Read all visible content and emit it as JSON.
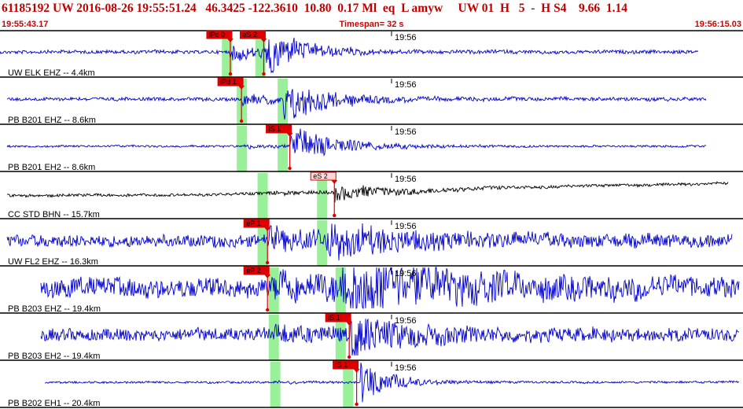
{
  "header": {
    "title": "61185192 UW 2016-08-26 19:55:51.24   46.3425 -122.3610  10.80  0.17 Ml  eq  L amyw     UW 01  H   5  -  H S4    9.66  1.14",
    "start_time": "19:55:43.17",
    "timespan": "Timespan=  32 s",
    "end_time": "19:56:15.03"
  },
  "colors": {
    "header_text": "#c00000",
    "trace_blue": "#0000cc",
    "trace_black": "#000000",
    "pick_box": "#dd0000",
    "pick_line": "#dd0000",
    "window_green": "#99f099",
    "divider": "#000000"
  },
  "traces": [
    {
      "label": "UW ELK EHZ -- 4.4km",
      "time_mark": "19:56",
      "color": "blue",
      "amp": 0.1,
      "start": 0.0,
      "end": 0.94,
      "windows": [
        0.305,
        0.35
      ],
      "picks": [
        {
          "label": "iPc 0",
          "t": 0.31,
          "filled": true
        },
        {
          "label": "eS 2",
          "t": 0.355,
          "filled": true
        }
      ],
      "onset_p": 0.31,
      "onset_s": 0.355,
      "p_amp": 0.7,
      "s_amp": 1.1,
      "decay": 0.05
    },
    {
      "label": "PB B201 EHZ -- 8.6km",
      "time_mark": "19:56",
      "color": "blue",
      "amp": 0.1,
      "start": 0.01,
      "end": 0.95,
      "windows": [
        0.325,
        0.38
      ],
      "picks": [
        {
          "label": "iPd 1",
          "t": 0.325,
          "filled": true
        }
      ],
      "onset_p": 0.325,
      "onset_s": 0.38,
      "p_amp": 0.5,
      "s_amp": 1.1,
      "decay": 0.06
    },
    {
      "label": "PB B201 EH2 -- 8.6km",
      "time_mark": "19:56",
      "color": "blue",
      "amp": 0.06,
      "start": 0.01,
      "end": 0.95,
      "windows": [
        0.325,
        0.38
      ],
      "picks": [
        {
          "label": "iS 1",
          "t": 0.39,
          "filled": true
        }
      ],
      "onset_p": 0.325,
      "onset_s": 0.39,
      "p_amp": 0.15,
      "s_amp": 1.1,
      "decay": 0.06
    },
    {
      "label": "CC STD BHN -- 15.7km",
      "time_mark": "19:56",
      "color": "black",
      "amp": 0.08,
      "start": 0.01,
      "end": 0.98,
      "windows": [
        0.353,
        0.433
      ],
      "picks": [
        {
          "label": "eS 2",
          "t": 0.45,
          "filled": false
        }
      ],
      "onset_p": 0.36,
      "onset_s": 0.45,
      "p_amp": 0.1,
      "s_amp": 0.4,
      "decay": 0.08,
      "drift": true
    },
    {
      "label": "UW FL2 EHZ -- 16.3km",
      "time_mark": "19:56",
      "color": "blue",
      "amp": 0.35,
      "start": 0.01,
      "end": 0.985,
      "windows": [
        0.353,
        0.433
      ],
      "picks": [
        {
          "label": "eP 1",
          "t": 0.36,
          "filled": true
        }
      ],
      "onset_p": 0.36,
      "onset_s": 0.44,
      "p_amp": 0.7,
      "s_amp": 0.7,
      "decay": 0.1
    },
    {
      "label": "PB B203 EHZ -- 19.4km",
      "time_mark": "19:56",
      "color": "blue",
      "amp": 0.55,
      "start": 0.055,
      "end": 0.995,
      "windows": [
        0.368,
        0.458
      ],
      "picks": [
        {
          "label": "eP 2",
          "t": 0.36,
          "filled": true
        }
      ],
      "onset_p": 0.37,
      "onset_s": 0.46,
      "p_amp": 1.0,
      "s_amp": 1.1,
      "decay": 0.15
    },
    {
      "label": "PB B203 EH2 -- 19.4km",
      "time_mark": "19:56",
      "color": "blue",
      "amp": 0.35,
      "start": 0.055,
      "end": 0.995,
      "windows": [
        0.368,
        0.458
      ],
      "picks": [
        {
          "label": "iS 1",
          "t": 0.47,
          "filled": true
        }
      ],
      "onset_p": 0.37,
      "onset_s": 0.47,
      "p_amp": 0.5,
      "s_amp": 1.0,
      "decay": 0.08
    },
    {
      "label": "PB B202 EH1 -- 20.4km",
      "time_mark": "19:56",
      "color": "blue",
      "amp": 0.06,
      "start": 0.06,
      "end": 0.995,
      "windows": [
        0.37,
        0.468
      ],
      "picks": [
        {
          "label": "iS 1",
          "t": 0.48,
          "filled": true
        }
      ],
      "onset_p": 0.37,
      "onset_s": 0.485,
      "p_amp": 0.1,
      "s_amp": 1.2,
      "decay": 0.04
    }
  ]
}
